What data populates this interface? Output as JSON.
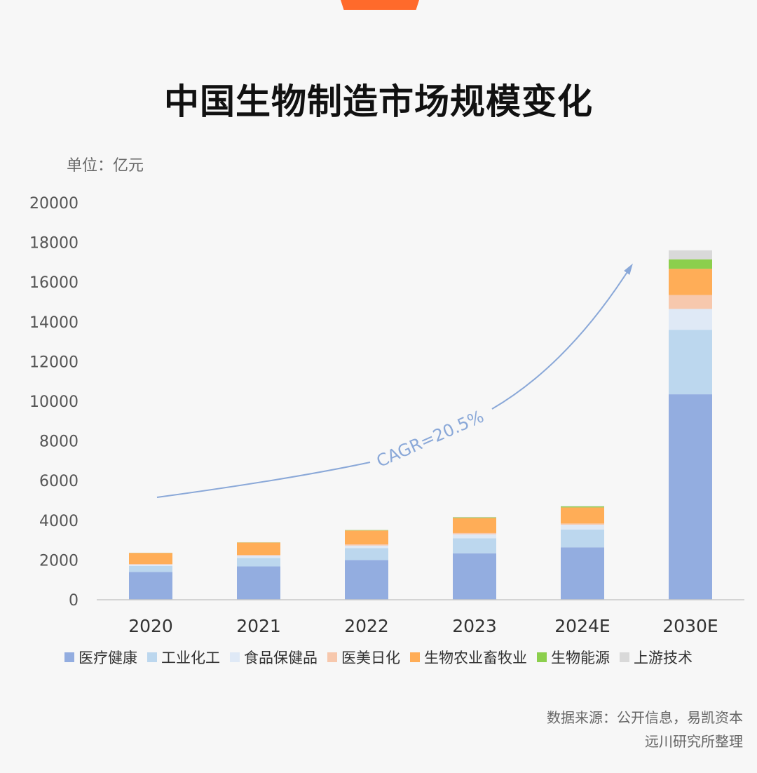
{
  "title": "中国生物制造市场规模变化",
  "unit_label": "单位：亿元",
  "annotation": {
    "label": "CAGR=20.5%"
  },
  "legend": [
    {
      "name": "医疗健康",
      "color": "#93ade0"
    },
    {
      "name": "工业化工",
      "color": "#bcd7ee"
    },
    {
      "name": "食品保健品",
      "color": "#dfe9f6"
    },
    {
      "name": "医美日化",
      "color": "#f7c8ad"
    },
    {
      "name": "生物农业畜牧业",
      "color": "#ffad57"
    },
    {
      "name": "生物能源",
      "color": "#8ccf4d"
    },
    {
      "name": "上游技术",
      "color": "#d9d9d9"
    }
  ],
  "source": {
    "line1": "数据来源：公开信息，易凯资本",
    "line2": "远川研究所整理"
  },
  "chart_data": {
    "type": "bar",
    "stacked": true,
    "categories": [
      "2020",
      "2021",
      "2022",
      "2023",
      "2024E",
      "2030E"
    ],
    "series": [
      {
        "name": "医疗健康",
        "values": [
          1400,
          1680,
          2000,
          2340,
          2640,
          10350
        ],
        "color": "#93ade0"
      },
      {
        "name": "工业化工",
        "values": [
          300,
          420,
          600,
          760,
          900,
          3250
        ],
        "color": "#bcd7ee"
      },
      {
        "name": "食品保健品",
        "values": [
          70,
          120,
          130,
          200,
          240,
          1050
        ],
        "color": "#dfe9f6"
      },
      {
        "name": "医美日化",
        "values": [
          30,
          40,
          60,
          60,
          60,
          700
        ],
        "color": "#f7c8ad"
      },
      {
        "name": "生物农业畜牧业",
        "values": [
          560,
          620,
          700,
          760,
          810,
          1320
        ],
        "color": "#ffad57"
      },
      {
        "name": "生物能源",
        "values": [
          5,
          10,
          20,
          30,
          50,
          480
        ],
        "color": "#8ccf4d"
      },
      {
        "name": "上游技术",
        "values": [
          5,
          10,
          10,
          20,
          20,
          450
        ],
        "color": "#d9d9d9"
      }
    ],
    "yticks": [
      0,
      2000,
      4000,
      6000,
      8000,
      10000,
      12000,
      14000,
      16000,
      18000,
      20000
    ],
    "ylim": [
      0,
      20000
    ],
    "grid": false,
    "legend_position": "bottom"
  }
}
